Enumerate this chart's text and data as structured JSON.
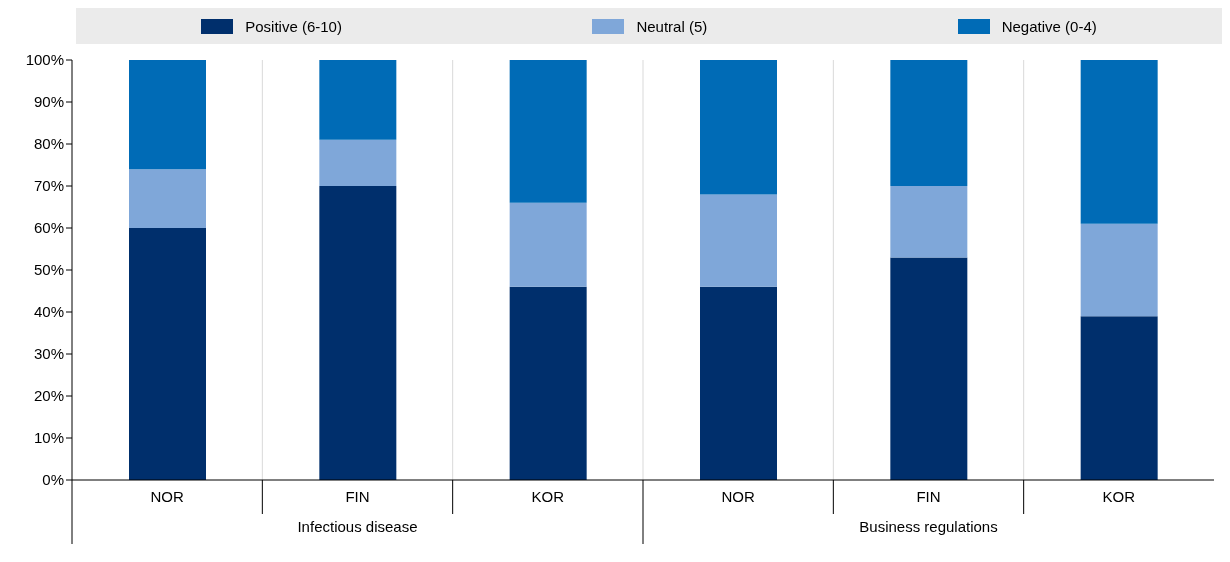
{
  "chart_data": {
    "type": "bar",
    "stacked": true,
    "categories": [
      "NOR",
      "FIN",
      "KOR",
      "NOR",
      "FIN",
      "KOR"
    ],
    "annotations": [
      "Infectious disease",
      "Business regulations"
    ],
    "series": [
      {
        "name": "Positive (6-10)",
        "color": "#002f6c",
        "values": [
          60,
          70,
          46,
          46,
          53,
          39
        ]
      },
      {
        "name": "Neutral (5)",
        "color": "#7fa7d9",
        "values": [
          14,
          11,
          20,
          22,
          17,
          22
        ]
      },
      {
        "name": "Negative (0-4)",
        "color": "#006bb6",
        "values": [
          26,
          19,
          34,
          32,
          30,
          39
        ]
      }
    ],
    "ylim": [
      0,
      100
    ],
    "yticks": [
      {
        "value": 0,
        "label": "0%"
      },
      {
        "value": 10,
        "label": "10%"
      },
      {
        "value": 20,
        "label": "20%"
      },
      {
        "value": 30,
        "label": "30%"
      },
      {
        "value": 40,
        "label": "40%"
      },
      {
        "value": 50,
        "label": "50%"
      },
      {
        "value": 60,
        "label": "60%"
      },
      {
        "value": 70,
        "label": "70%"
      },
      {
        "value": 80,
        "label": "80%"
      },
      {
        "value": 90,
        "label": "90%"
      },
      {
        "value": 100,
        "label": "100%"
      }
    ],
    "grid": "x",
    "legend": "top"
  }
}
